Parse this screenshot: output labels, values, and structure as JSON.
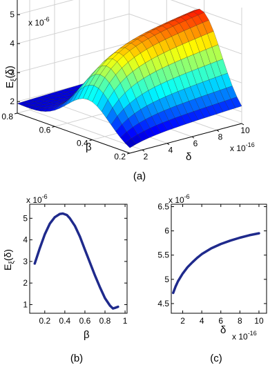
{
  "colors": {
    "curve": "#1f2a8c",
    "axis": "#000000",
    "grid": "#d0d0d0"
  },
  "panels": {
    "a": {
      "caption": "(a)"
    },
    "b": {
      "caption": "(b)"
    },
    "c": {
      "caption": "(c)"
    }
  },
  "chart_data": [
    {
      "id": "a",
      "type": "surface",
      "zlabel_main": "E",
      "zlabel_sub": "ξ",
      "zlabel_tail": "(δ)",
      "xlabel": "δ",
      "ylabel": "β",
      "z_multiplier": "x 10",
      "z_exponent": "-6",
      "x_multiplier": "x 10",
      "x_exponent": "-16",
      "x_ticks": [
        "2",
        "4",
        "6",
        "8",
        "10"
      ],
      "y_ticks": [
        "0.2",
        "0.4",
        "0.6",
        "0.8"
      ],
      "z_ticks": [
        "2",
        "3",
        "4",
        "5"
      ],
      "xlim": [
        1,
        10
      ],
      "ylim": [
        0.2,
        0.8
      ],
      "zlim": [
        1.6,
        5.6
      ],
      "grid": true,
      "colormap": "jet"
    },
    {
      "id": "b",
      "type": "line",
      "ylabel_main": "E",
      "ylabel_sub": "ξ",
      "ylabel_tail": "(δ)",
      "xlabel": "β",
      "y_multiplier": "x 10",
      "y_exponent": "-6",
      "x_ticks": [
        "0.2",
        "0.4",
        "0.6",
        "0.8",
        "1"
      ],
      "y_ticks": [
        "1",
        "2",
        "3",
        "4",
        "5"
      ],
      "xlim": [
        0.05,
        1.02
      ],
      "ylim": [
        0.6,
        5.65
      ],
      "grid": false,
      "x": [
        0.1,
        0.15,
        0.2,
        0.25,
        0.3,
        0.35,
        0.38,
        0.42,
        0.45,
        0.5,
        0.55,
        0.6,
        0.65,
        0.7,
        0.75,
        0.8,
        0.85,
        0.88,
        0.9,
        0.93
      ],
      "y": [
        2.9,
        3.6,
        4.25,
        4.75,
        5.05,
        5.2,
        5.22,
        5.15,
        5.0,
        4.65,
        4.15,
        3.55,
        2.95,
        2.35,
        1.8,
        1.3,
        0.95,
        0.82,
        0.85,
        0.9
      ]
    },
    {
      "id": "c",
      "type": "line",
      "xlabel": "δ",
      "y_multiplier": "x 10",
      "y_exponent": "-6",
      "x_multiplier": "x 10",
      "x_exponent": "-16",
      "x_ticks": [
        "2",
        "4",
        "6",
        "8",
        "10"
      ],
      "y_ticks": [
        "4.5",
        "5",
        "5.5",
        "6",
        "6.5"
      ],
      "xlim": [
        0.8,
        10.8
      ],
      "ylim": [
        4.3,
        6.55
      ],
      "grid": false,
      "x": [
        1,
        1.25,
        1.5,
        2,
        2.5,
        3,
        3.5,
        4,
        5,
        6,
        7,
        8,
        9,
        10
      ],
      "y": [
        4.72,
        4.85,
        4.96,
        5.12,
        5.25,
        5.35,
        5.44,
        5.52,
        5.64,
        5.73,
        5.8,
        5.86,
        5.91,
        5.95
      ]
    }
  ]
}
